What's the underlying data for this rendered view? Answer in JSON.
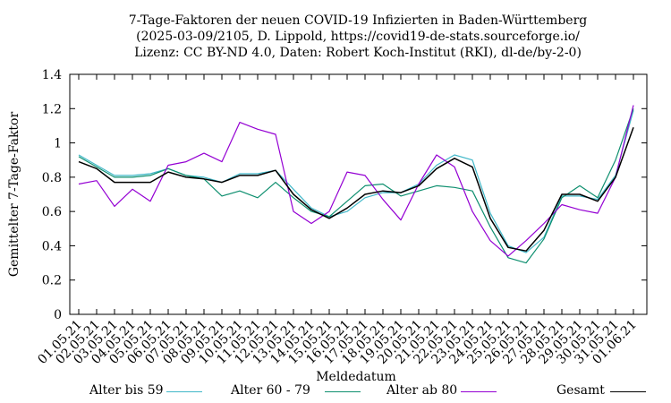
{
  "chart_data": {
    "type": "line",
    "title_lines": [
      "7-Tage-Faktoren der neuen COVID-19 Infizierten in Baden-Württemberg",
      "(2025-03-09/2105, D. Lippold, https://covid19-de-stats.sourceforge.io/",
      "Lizenz: CC BY-ND 4.0, Daten: Robert Koch-Institut (RKI), dl-de/by-2-0)"
    ],
    "xlabel": "Meldedatum",
    "ylabel": "Gemittelter 7-Tage-Faktor",
    "ylim": [
      0,
      1.4
    ],
    "yticks": [
      "0",
      "0.2",
      "0.4",
      "0.6",
      "0.8",
      "1",
      "1.2",
      "1.4"
    ],
    "grid": false,
    "legend_placement": "bottom",
    "categories": [
      "01.05.21",
      "02.05.21",
      "03.05.21",
      "04.05.21",
      "05.05.21",
      "06.05.21",
      "07.05.21",
      "08.05.21",
      "09.05.21",
      "10.05.21",
      "11.05.21",
      "12.05.21",
      "13.05.21",
      "14.05.21",
      "15.05.21",
      "16.05.21",
      "17.05.21",
      "18.05.21",
      "19.05.21",
      "20.05.21",
      "21.05.21",
      "22.05.21",
      "23.05.21",
      "24.05.21",
      "25.05.21",
      "26.05.21",
      "27.05.21",
      "28.05.21",
      "29.05.21",
      "30.05.21",
      "31.05.21",
      "01.06.21"
    ],
    "series": [
      {
        "name": "Alter bis 59",
        "color": "#41b8c9",
        "values": [
          0.93,
          0.87,
          0.81,
          0.81,
          0.82,
          0.85,
          0.81,
          0.8,
          0.77,
          0.82,
          0.82,
          0.84,
          0.73,
          0.62,
          0.57,
          0.6,
          0.68,
          0.71,
          0.71,
          0.76,
          0.87,
          0.93,
          0.9,
          0.59,
          0.4,
          0.36,
          0.45,
          0.69,
          0.69,
          0.67,
          0.81,
          1.19
        ]
      },
      {
        "name": "Alter 60 - 79",
        "color": "#0e8f6f",
        "values": [
          0.92,
          0.86,
          0.8,
          0.8,
          0.81,
          0.85,
          0.81,
          0.79,
          0.69,
          0.72,
          0.68,
          0.77,
          0.68,
          0.6,
          0.57,
          0.66,
          0.75,
          0.76,
          0.69,
          0.72,
          0.75,
          0.74,
          0.72,
          0.51,
          0.33,
          0.3,
          0.44,
          0.68,
          0.75,
          0.68,
          0.9,
          1.2
        ]
      },
      {
        "name": "Alter ab 80",
        "color": "#9400d3",
        "values": [
          0.76,
          0.78,
          0.63,
          0.73,
          0.66,
          0.87,
          0.89,
          0.94,
          0.89,
          1.12,
          1.08,
          1.05,
          0.6,
          0.53,
          0.6,
          0.83,
          0.81,
          0.67,
          0.55,
          0.76,
          0.93,
          0.86,
          0.6,
          0.43,
          0.34,
          0.43,
          0.53,
          0.64,
          0.61,
          0.59,
          0.8,
          1.22
        ]
      },
      {
        "name": "Gesamt",
        "color": "#000000",
        "values": [
          0.89,
          0.85,
          0.77,
          0.77,
          0.77,
          0.83,
          0.8,
          0.79,
          0.77,
          0.81,
          0.81,
          0.84,
          0.7,
          0.61,
          0.56,
          0.62,
          0.7,
          0.72,
          0.71,
          0.75,
          0.85,
          0.91,
          0.86,
          0.56,
          0.39,
          0.37,
          0.49,
          0.7,
          0.7,
          0.66,
          0.8,
          1.09
        ]
      }
    ]
  }
}
